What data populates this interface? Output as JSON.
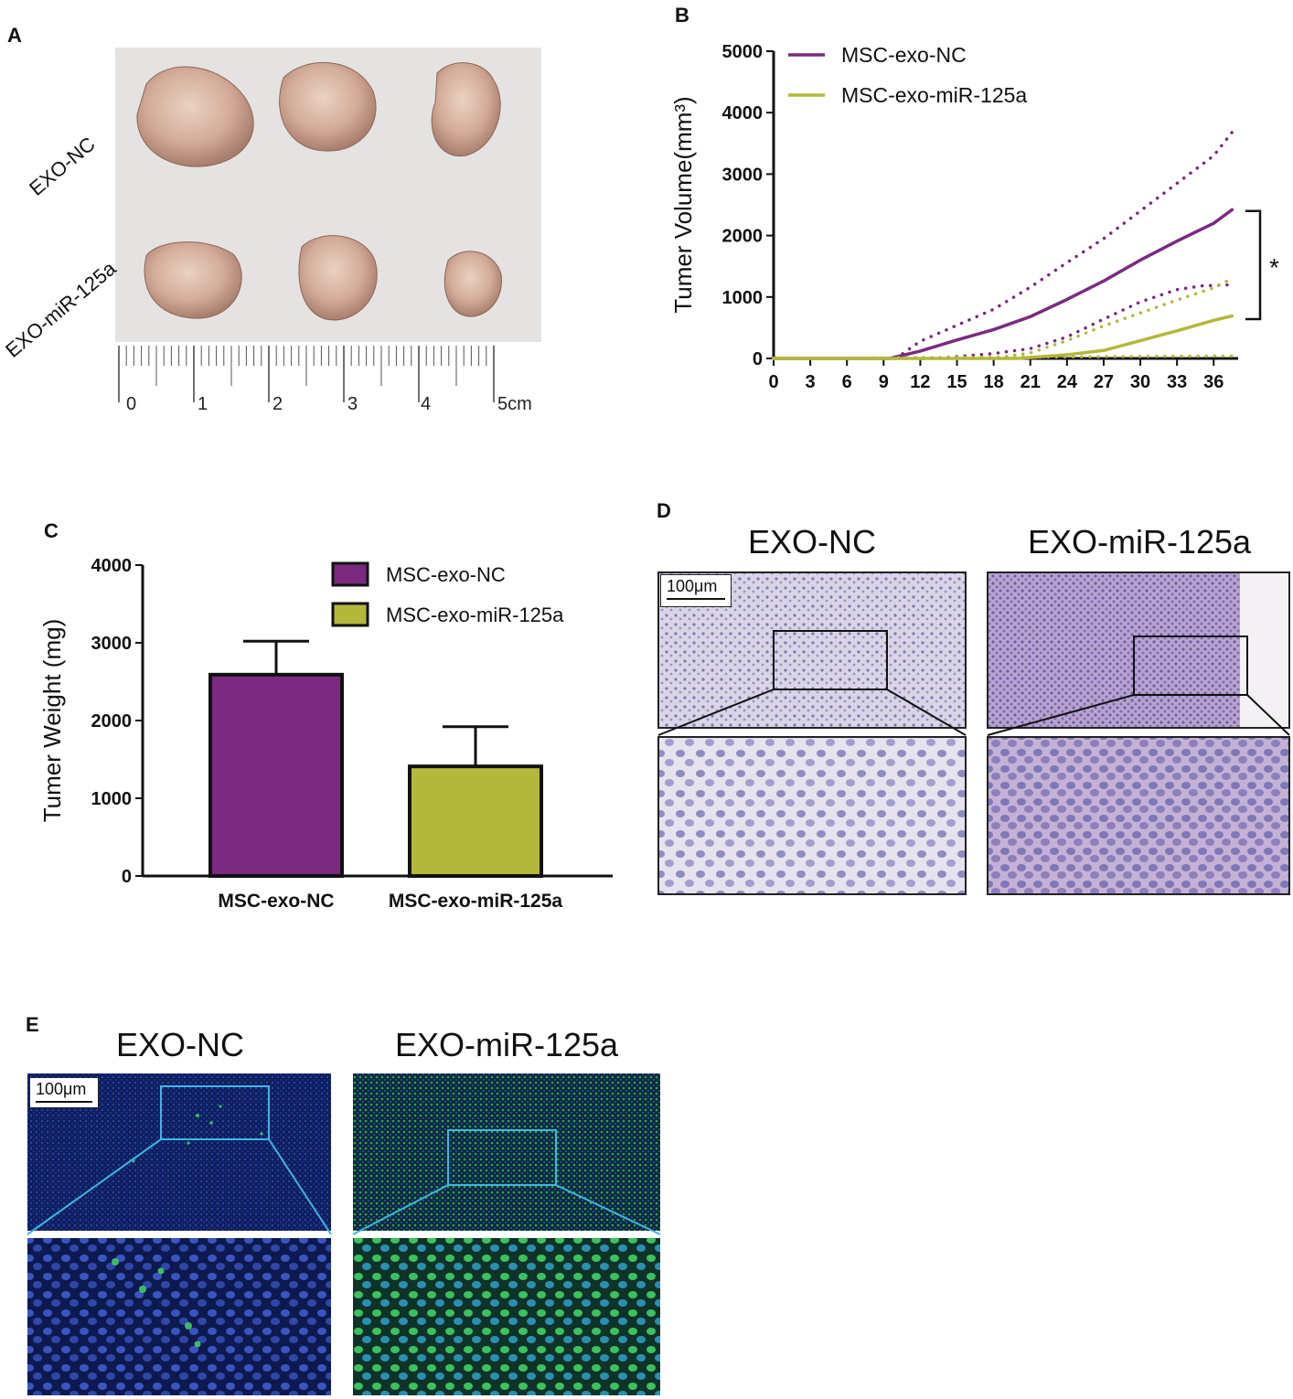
{
  "panels": {
    "a": "A",
    "b": "B",
    "c": "C",
    "d": "D",
    "e": "E"
  },
  "panel_a": {
    "row_labels": [
      "EXO-NC",
      "EXO-miR-125a"
    ],
    "ruler_labels": [
      "0",
      "1",
      "2",
      "3",
      "4",
      "5cm"
    ]
  },
  "panel_d": {
    "titles": [
      "EXO-NC",
      "EXO-miR-125a"
    ],
    "scalebar": "100μm"
  },
  "panel_e": {
    "titles": [
      "EXO-NC",
      "EXO-miR-125a"
    ],
    "scalebar": "100μm"
  },
  "colors": {
    "nc": "#7b2a80",
    "mir": "#b4b83a",
    "cyan_box": "#3fb6e0"
  },
  "chart_data": [
    {
      "type": "line",
      "ylabel": "Tumer Volume(mm³)",
      "xlabel": "",
      "ylim": [
        0,
        5000
      ],
      "xlim": [
        0,
        38
      ],
      "yticks": [
        "0",
        "1000",
        "2000",
        "3000",
        "4000",
        "5000"
      ],
      "xticks": [
        "0",
        "3",
        "6",
        "9",
        "12",
        "15",
        "18",
        "21",
        "24",
        "27",
        "30",
        "33",
        "36"
      ],
      "legend": {
        "position": "top-left",
        "entries": [
          "MSC-exo-NC",
          "MSC-exo-miR-125a"
        ]
      },
      "annotation": "*",
      "series": [
        {
          "name": "MSC-exo-NC",
          "style": "solid",
          "x": [
            0,
            9.5,
            12,
            15,
            18,
            21,
            24,
            27,
            30,
            33,
            36,
            37.5
          ],
          "y": [
            0,
            0,
            120,
            300,
            470,
            680,
            960,
            1260,
            1600,
            1910,
            2200,
            2420
          ]
        },
        {
          "name": "",
          "style": "dotted",
          "color": "nc",
          "x": [
            10,
            12,
            15,
            18,
            21,
            24,
            27,
            30,
            33,
            36,
            37.5
          ],
          "y": [
            0,
            280,
            540,
            800,
            1160,
            1560,
            1950,
            2400,
            2850,
            3300,
            3680
          ]
        },
        {
          "name": "",
          "style": "dotted",
          "color": "nc",
          "x": [
            0,
            13,
            15,
            18,
            21,
            24,
            27,
            30,
            33,
            35,
            37.5
          ],
          "y": [
            0,
            0,
            30,
            80,
            160,
            350,
            640,
            920,
            1120,
            1180,
            1200
          ]
        },
        {
          "name": "MSC-exo-miR-125a",
          "style": "solid",
          "x": [
            0,
            20,
            24,
            27,
            30,
            33,
            36,
            37.5
          ],
          "y": [
            0,
            0,
            60,
            130,
            290,
            450,
            620,
            690
          ]
        },
        {
          "name": "",
          "style": "dotted",
          "color": "mir",
          "x": [
            0,
            18,
            21,
            24,
            27,
            30,
            33,
            36,
            37.5
          ],
          "y": [
            0,
            0,
            90,
            290,
            530,
            740,
            950,
            1150,
            1300
          ]
        },
        {
          "name": "",
          "style": "dotted",
          "color": "mir",
          "x": [
            0,
            37.5
          ],
          "y": [
            0,
            40
          ]
        }
      ]
    },
    {
      "type": "bar",
      "ylabel": "Tumer Weight (mg)",
      "xlabel": "",
      "ylim": [
        0,
        4000
      ],
      "yticks": [
        "0",
        "1000",
        "2000",
        "3000",
        "4000"
      ],
      "categories": [
        "MSC-exo-NC",
        "MSC-exo-miR-125a"
      ],
      "values": [
        2590,
        1410
      ],
      "error": [
        430,
        510
      ],
      "legend": {
        "position": "top-right",
        "entries": [
          "MSC-exo-NC",
          "MSC-exo-miR-125a"
        ]
      }
    }
  ]
}
